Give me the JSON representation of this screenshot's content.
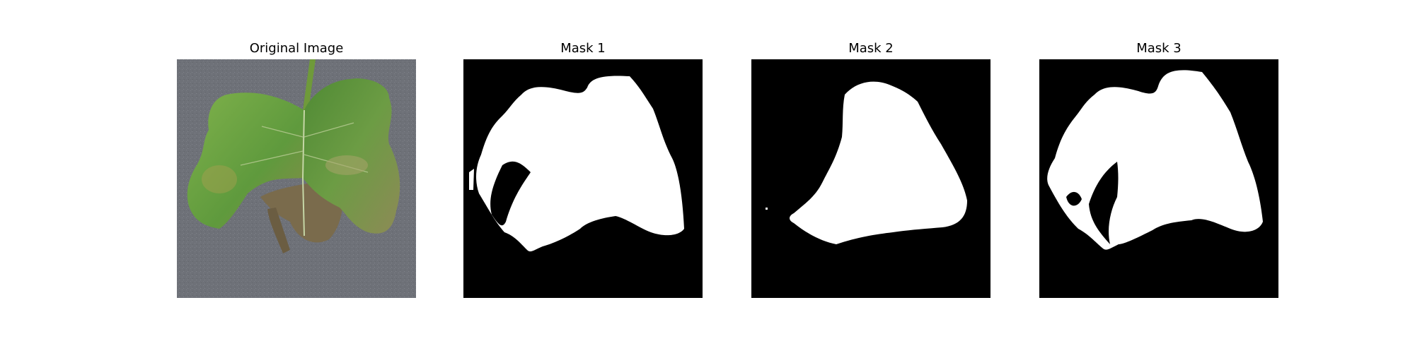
{
  "panels": [
    {
      "title": "Original Image",
      "kind": "photo",
      "subject": "green leaf on gray background"
    },
    {
      "title": "Mask 1",
      "kind": "mask"
    },
    {
      "title": "Mask 2",
      "kind": "mask"
    },
    {
      "title": "Mask 3",
      "kind": "mask"
    }
  ],
  "colors": {
    "background": "#ffffff",
    "gray_bg": "#6e7178",
    "leaf_green": "#5f9a3d",
    "leaf_dark": "#4a7a2e",
    "leaf_brown": "#7a6b4c",
    "mask_bg": "#000000",
    "mask_fg": "#ffffff"
  }
}
